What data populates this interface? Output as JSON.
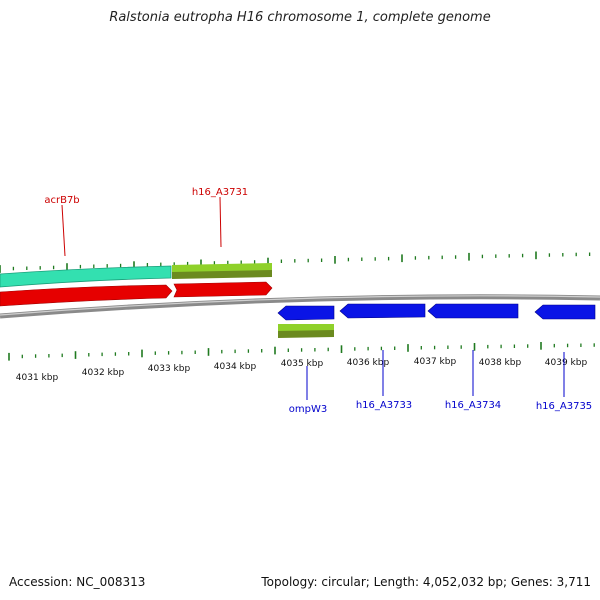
{
  "title": "Ralstonia eutropha H16 chromosome 1, complete genome",
  "footer": {
    "accession": "Accession: NC_008313",
    "info": "Topology: circular; Length: 4,052,032 bp; Genes: 3,711"
  },
  "colors": {
    "backbone": "#8a8a8a",
    "tick": "#1f7a1f",
    "label_top": "#cc0000",
    "label_bottom": "#0000cc",
    "cds_teal": "#33e0b0",
    "cds_lime": "#8fd12a",
    "cds_olive": "#6b8a1f",
    "cds_red": "#e60000",
    "cds_blue": "#0a14e6"
  },
  "scale_labels": [
    "4031 kbp",
    "4032 kbp",
    "4033 kbp",
    "4034 kbp",
    "4035 kbp",
    "4036 kbp",
    "4037 kbp",
    "4038 kbp",
    "4039 kbp"
  ],
  "gene_labels": {
    "top": [
      "acrB7b",
      "h16_A3731"
    ],
    "bottom": [
      "ompW3",
      "h16_A3733",
      "h16_A3734",
      "h16_A3735"
    ]
  }
}
